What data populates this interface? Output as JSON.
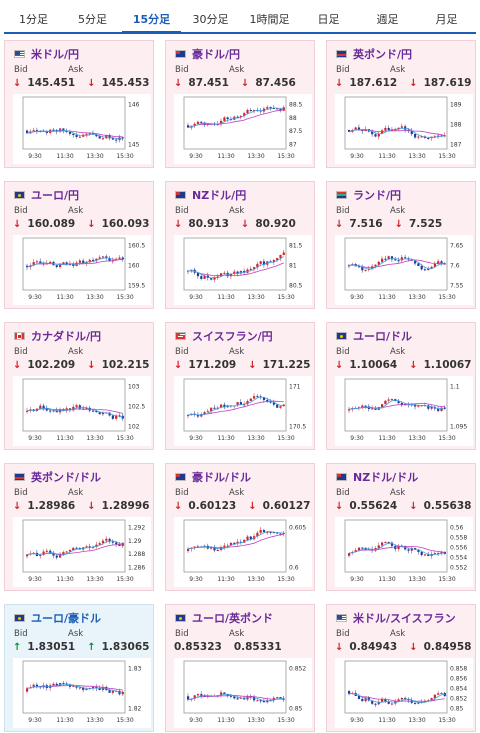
{
  "tabs": [
    {
      "label": "1分足",
      "active": false
    },
    {
      "label": "5分足",
      "active": false
    },
    {
      "label": "15分足",
      "active": true
    },
    {
      "label": "30分足",
      "active": false
    },
    {
      "label": "1時間足",
      "active": false
    },
    {
      "label": "日足",
      "active": false
    },
    {
      "label": "週足",
      "active": false
    },
    {
      "label": "月足",
      "active": false
    }
  ],
  "bid_label": "Bid",
  "ask_label": "Ask",
  "time_ticks": [
    "9:30",
    "11:30",
    "13:30",
    "15:30"
  ],
  "colors": {
    "down": "#d0222a",
    "up": "#1b8a3a",
    "bull_candle": "#d0222a",
    "bear_candle": "#1c3c9c",
    "ma_slow": "#c040c0",
    "ma_fast": "#40a0e0"
  },
  "cards": [
    {
      "pair": "米ドル/円",
      "flag": "us",
      "dir": "down",
      "bid": "145.451",
      "ask": "145.453",
      "y_ticks": [
        "146",
        "145"
      ]
    },
    {
      "pair": "豪ドル/円",
      "flag": "au",
      "dir": "down",
      "bid": "87.451",
      "ask": "87.456",
      "y_ticks": [
        "88.5",
        "88",
        "87.5",
        "87"
      ]
    },
    {
      "pair": "英ポンド/円",
      "flag": "gb",
      "dir": "down",
      "bid": "187.612",
      "ask": "187.619",
      "y_ticks": [
        "189",
        "188",
        "187"
      ]
    },
    {
      "pair": "ユーロ/円",
      "flag": "eu",
      "dir": "down",
      "bid": "160.089",
      "ask": "160.093",
      "y_ticks": [
        "160.5",
        "160",
        "159.5"
      ]
    },
    {
      "pair": "NZドル/円",
      "flag": "nz",
      "dir": "down",
      "bid": "80.913",
      "ask": "80.920",
      "y_ticks": [
        "81.5",
        "81",
        "80.5"
      ]
    },
    {
      "pair": "ランド/円",
      "flag": "za",
      "dir": "down",
      "bid": "7.516",
      "ask": "7.525",
      "y_ticks": [
        "7.65",
        "7.6",
        "7.55"
      ]
    },
    {
      "pair": "カナダドル/円",
      "flag": "ca",
      "dir": "down",
      "bid": "102.209",
      "ask": "102.215",
      "y_ticks": [
        "103",
        "102.5",
        "102"
      ]
    },
    {
      "pair": "スイスフラン/円",
      "flag": "ch",
      "dir": "down",
      "bid": "171.209",
      "ask": "171.225",
      "y_ticks": [
        "171",
        "170.5"
      ]
    },
    {
      "pair": "ユーロ/ドル",
      "flag": "eu",
      "dir": "down",
      "bid": "1.10064",
      "ask": "1.10067",
      "y_ticks": [
        "1.1",
        "1.095"
      ]
    },
    {
      "pair": "英ポンド/ドル",
      "flag": "gb",
      "dir": "down",
      "bid": "1.28986",
      "ask": "1.28996",
      "y_ticks": [
        "1.292",
        "1.29",
        "1.288",
        "1.286"
      ]
    },
    {
      "pair": "豪ドル/ドル",
      "flag": "au",
      "dir": "down",
      "bid": "0.60123",
      "ask": "0.60127",
      "y_ticks": [
        "0.605",
        "0.6"
      ]
    },
    {
      "pair": "NZドル/ドル",
      "flag": "nz",
      "dir": "down",
      "bid": "0.55624",
      "ask": "0.55638",
      "y_ticks": [
        "0.56",
        "0.558",
        "0.556",
        "0.554",
        "0.552"
      ]
    },
    {
      "pair": "ユーロ/豪ドル",
      "flag": "eu",
      "dir": "up",
      "bid": "1.83051",
      "ask": "1.83065",
      "y_ticks": [
        "1.83",
        "1.82"
      ]
    },
    {
      "pair": "ユーロ/英ポンド",
      "flag": "eu",
      "dir": "none",
      "bid": "0.85323",
      "ask": "0.85331",
      "y_ticks": [
        "0.852",
        "0.85"
      ]
    },
    {
      "pair": "米ドル/スイスフラン",
      "flag": "us",
      "dir": "down",
      "bid": "0.84943",
      "ask": "0.84958",
      "y_ticks": [
        "0.858",
        "0.856",
        "0.854",
        "0.852",
        "0.85"
      ]
    }
  ]
}
